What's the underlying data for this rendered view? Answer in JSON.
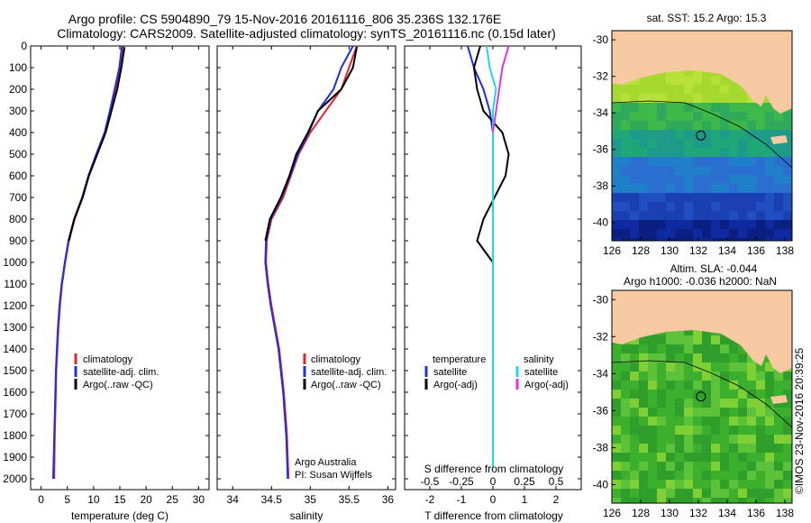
{
  "header": {
    "title_line1": "Argo profile: CS 5904890_79 15-Nov-2016 20161116_806 35.236S 132.176E",
    "title_line2": "Climatology: CARS2009. Satellite-adjusted climatology: synTS_20161116.nc (0.15d later)"
  },
  "colors": {
    "climatology": "#e3262a",
    "satellite": "#1f2fe0",
    "argo": "#000000",
    "sal_satellite": "#1fd8e8",
    "sal_argo": "#e033e0",
    "land": "#f7c9a0"
  },
  "chart_data": [
    {
      "type": "line",
      "xlabel": "temperature (deg C)",
      "ylabel": "",
      "xlim": [
        -2,
        32
      ],
      "ylim": [
        2050,
        0
      ],
      "xticks": [
        0,
        5,
        10,
        15,
        20,
        25,
        30
      ],
      "yticks": [
        0,
        100,
        200,
        300,
        400,
        500,
        600,
        700,
        800,
        900,
        1000,
        1100,
        1200,
        1300,
        1400,
        1500,
        1600,
        1700,
        1800,
        1900,
        2000
      ],
      "legend": [
        "climatology",
        "satellite-adj. clim.",
        "Argo(..raw -QC)"
      ],
      "series": [
        {
          "name": "climatology",
          "color": "#e3262a",
          "x": [
            15.6,
            15.1,
            14.3,
            13.2,
            12.2,
            10.6,
            9.1,
            7.9,
            6.4,
            5.3,
            4.6,
            4.0,
            3.6,
            3.3,
            3.1,
            2.9,
            2.8,
            2.7,
            2.6,
            2.55,
            2.5
          ],
          "y": [
            0,
            100,
            200,
            300,
            400,
            500,
            600,
            700,
            800,
            900,
            1000,
            1100,
            1200,
            1300,
            1400,
            1500,
            1600,
            1700,
            1800,
            1900,
            2000
          ]
        },
        {
          "name": "satellite-adj. clim.",
          "color": "#1f2fe0",
          "x": [
            15.4,
            14.9,
            14.0,
            13.1,
            12.1,
            10.5,
            9.0,
            7.8,
            6.3,
            5.2,
            4.5,
            3.9,
            3.5,
            3.2,
            3.0,
            2.8,
            2.7,
            2.6,
            2.5,
            2.4,
            2.3
          ],
          "y": [
            0,
            100,
            200,
            300,
            400,
            500,
            600,
            700,
            800,
            900,
            1000,
            1100,
            1200,
            1300,
            1400,
            1500,
            1600,
            1700,
            1800,
            1900,
            2000
          ]
        },
        {
          "name": "Argo(..raw -QC)",
          "color": "#000000",
          "x": [
            15.9,
            15.3,
            14.5,
            13.4,
            12.3,
            10.7,
            9.1,
            7.9,
            6.3,
            5.3
          ],
          "y": [
            5,
            100,
            200,
            300,
            400,
            500,
            600,
            700,
            800,
            900
          ]
        }
      ]
    },
    {
      "type": "line",
      "xlabel": "salinity",
      "ylabel": "",
      "xlim": [
        33.8,
        36.1
      ],
      "ylim": [
        2050,
        0
      ],
      "xticks": [
        34,
        34.5,
        35,
        35.5,
        36
      ],
      "legend": [
        "climatology",
        "satellite-adj. clim.",
        "Argo(..raw -QC)"
      ],
      "annotation": [
        "Argo Australia",
        "PI: Susan Wijffels"
      ],
      "series": [
        {
          "name": "climatology",
          "color": "#e3262a",
          "x": [
            35.6,
            35.5,
            35.4,
            35.2,
            35.0,
            34.85,
            34.75,
            34.65,
            34.5,
            34.44,
            34.43,
            34.46,
            34.5,
            34.55,
            34.6,
            34.63,
            34.66,
            34.68,
            34.7,
            34.71,
            34.72
          ],
          "y": [
            0,
            100,
            200,
            300,
            400,
            500,
            600,
            700,
            800,
            900,
            1000,
            1100,
            1200,
            1300,
            1400,
            1500,
            1600,
            1700,
            1800,
            1900,
            2000
          ]
        },
        {
          "name": "satellite-adj. clim.",
          "color": "#1f2fe0",
          "x": [
            35.55,
            35.4,
            35.3,
            35.1,
            34.98,
            34.84,
            34.74,
            34.63,
            34.49,
            34.43,
            34.42,
            34.45,
            34.49,
            34.54,
            34.59,
            34.62,
            34.65,
            34.67,
            34.69,
            34.7,
            34.71
          ],
          "y": [
            0,
            100,
            200,
            300,
            400,
            500,
            600,
            700,
            800,
            900,
            1000,
            1100,
            1200,
            1300,
            1400,
            1500,
            1600,
            1700,
            1800,
            1900,
            2000
          ]
        },
        {
          "name": "Argo(..raw -QC)",
          "color": "#000000",
          "x": [
            35.6,
            35.55,
            35.4,
            35.1,
            34.97,
            34.82,
            34.73,
            34.62,
            34.48,
            34.42
          ],
          "y": [
            5,
            100,
            200,
            300,
            400,
            500,
            600,
            700,
            800,
            900
          ]
        }
      ]
    },
    {
      "type": "line",
      "xlabel": "T difference from climatology",
      "xlabel_top": "S difference from climatology",
      "xlim": [
        -2.8,
        2.8
      ],
      "ylim": [
        2050,
        0
      ],
      "xticks": [
        -2,
        -1,
        0,
        1,
        2
      ],
      "xticks_top": [
        "-0.5",
        "-0.25",
        "0",
        "0.25",
        "0.5"
      ],
      "legend": {
        "temperature_title": "temperature",
        "salinity_title": "salinity",
        "entries": [
          "satellite",
          "Argo(-adj)",
          "satellite",
          "Argo(-adj)"
        ]
      },
      "series": [
        {
          "name": "satellite",
          "color": "#1f2fe0",
          "x": [
            -0.8,
            -0.6,
            -0.3,
            -0.1,
            0.0,
            0.0,
            0.0,
            0.0,
            0.0,
            0.0,
            0.0
          ],
          "y": [
            0,
            100,
            200,
            300,
            400,
            600,
            800,
            1000,
            1200,
            1600,
            1950
          ]
        },
        {
          "name": "Argo(-adj)",
          "color": "#000000",
          "x": [
            -0.4,
            -0.6,
            -0.5,
            -0.3,
            0.3,
            0.5,
            0.4,
            -0.3,
            -0.5,
            0.0,
            0.0
          ],
          "y": [
            0,
            100,
            200,
            300,
            400,
            500,
            600,
            800,
            900,
            1000,
            1100
          ]
        },
        {
          "name": "satellite",
          "color": "#1fd8e8",
          "x": [
            -0.2,
            -0.1,
            0.1,
            0.0,
            0.0,
            0.0,
            0.0,
            0.0,
            0.0
          ],
          "y": [
            0,
            100,
            200,
            300,
            500,
            800,
            1100,
            1500,
            1950
          ]
        },
        {
          "name": "Argo(-adj)",
          "color": "#e033e0",
          "x": [
            0.5,
            0.3,
            0.2,
            0.1,
            0.0
          ],
          "y": [
            0,
            100,
            200,
            300,
            400
          ]
        }
      ]
    },
    {
      "type": "heatmap",
      "title": "sat. SST: 15.2  Argo: 15.3",
      "xticks": [
        126,
        128,
        130,
        132,
        134,
        136,
        138
      ],
      "yticks": [
        -30,
        -32,
        -34,
        -36,
        -38,
        -40
      ],
      "xlim": [
        126,
        138.5
      ],
      "ylim": [
        -41,
        -29.5
      ],
      "marker": {
        "lon": 132.176,
        "lat": -35.236
      }
    },
    {
      "type": "heatmap",
      "title_line1": "Altim. SLA: -0.044",
      "title_line2": "Argo h1000: -0.036  h2000: NaN",
      "xticks": [
        126,
        128,
        130,
        132,
        134,
        136,
        138
      ],
      "yticks": [
        -30,
        -32,
        -34,
        -36,
        -38,
        -40
      ],
      "xlim": [
        126,
        138.5
      ],
      "ylim": [
        -41,
        -29.5
      ],
      "marker": {
        "lon": 132.176,
        "lat": -35.236
      }
    }
  ],
  "footer": {
    "credit": "©IMOS 23-Nov-2016 20:39:25"
  }
}
